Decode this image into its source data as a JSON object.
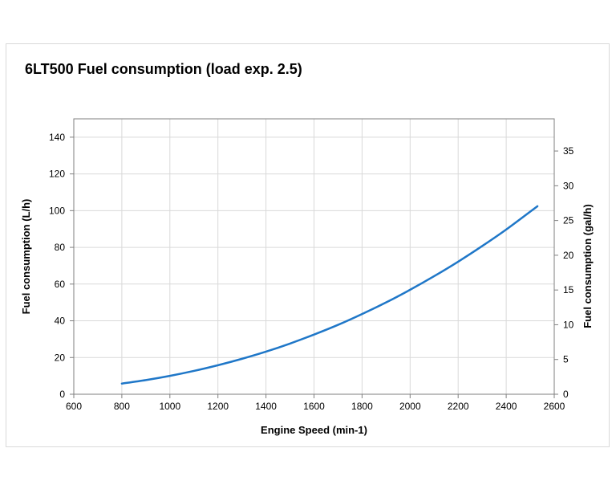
{
  "chart_data": {
    "type": "line",
    "title": "6LT500 Fuel consumption (load exp. 2.5)",
    "xlabel": "Engine Speed (min-1)",
    "ylabel": "Fuel consumption (L/h)",
    "y2label": "Fuel consumption (gal/h)",
    "xlim": [
      600,
      2600
    ],
    "ylim": [
      0,
      150
    ],
    "y2lim": [
      0,
      39.63
    ],
    "xticks": [
      600,
      800,
      1000,
      1200,
      1400,
      1600,
      1800,
      2000,
      2200,
      2400,
      2600
    ],
    "yticks": [
      0,
      20,
      40,
      60,
      80,
      100,
      120,
      140
    ],
    "y2ticks": [
      0,
      5,
      10,
      15,
      20,
      25,
      30,
      35
    ],
    "grid": true,
    "series": [
      {
        "color": "#1f77c8",
        "x": [
          800,
          900,
          1000,
          1100,
          1200,
          1300,
          1400,
          1500,
          1600,
          1700,
          1800,
          1900,
          2000,
          2100,
          2200,
          2300,
          2400,
          2530
        ],
        "y": [
          5.8,
          7.7,
          10.0,
          12.7,
          15.8,
          19.3,
          23.2,
          27.6,
          32.5,
          37.8,
          43.7,
          50.0,
          56.9,
          64.3,
          72.2,
          80.7,
          89.7,
          102.4
        ]
      }
    ]
  }
}
